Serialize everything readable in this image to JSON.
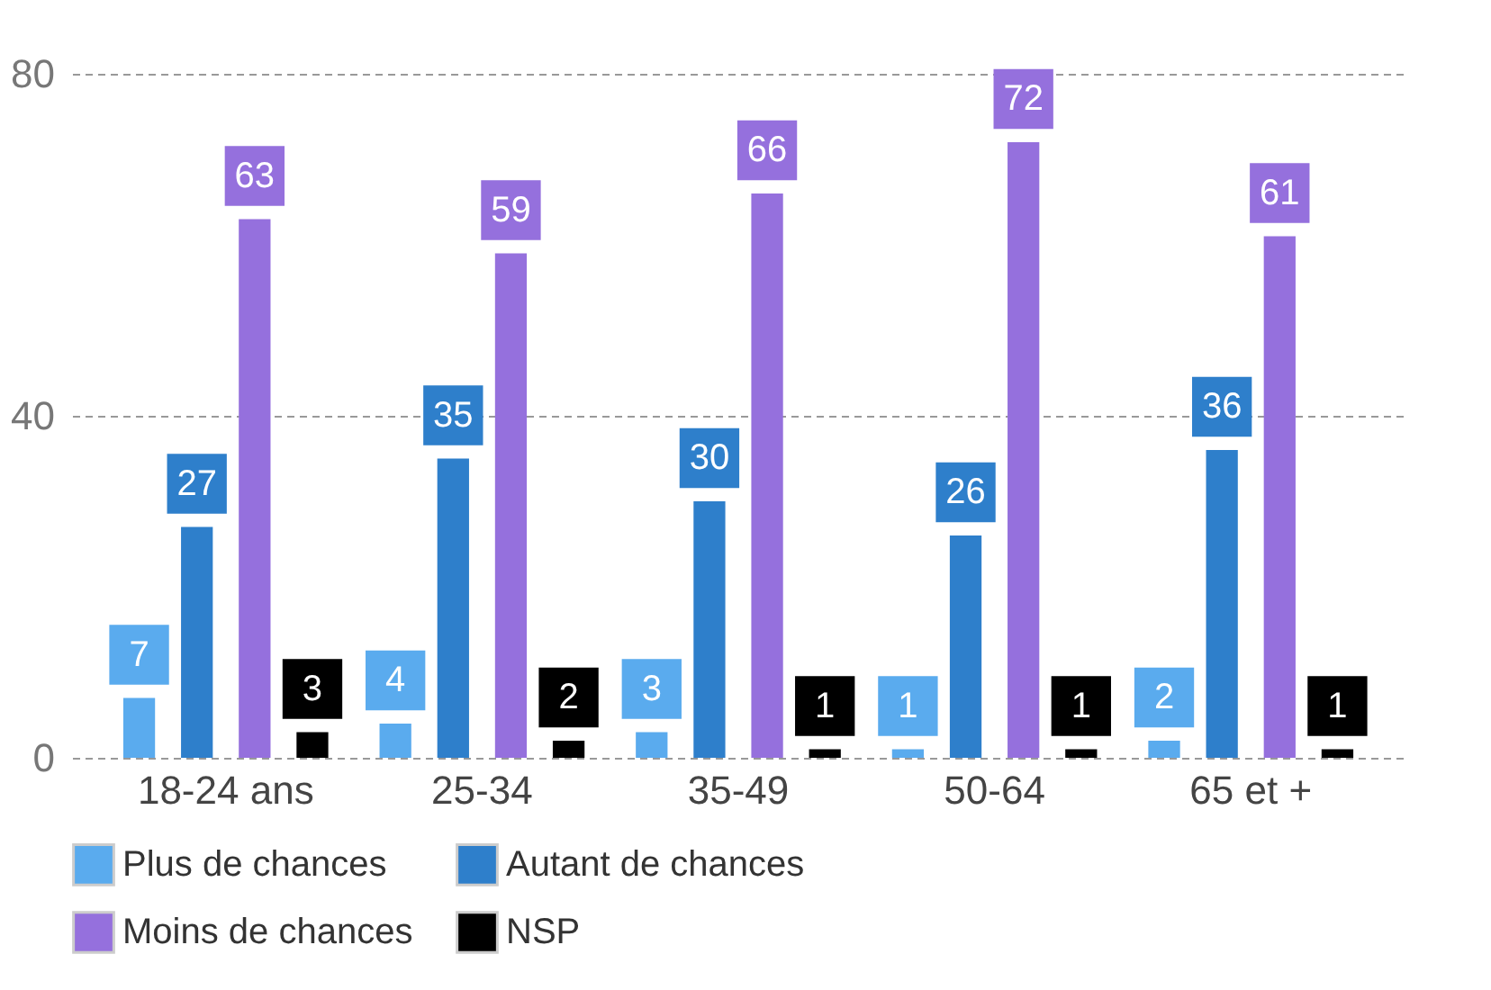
{
  "chart_data": {
    "type": "bar",
    "categories": [
      "18-24 ans",
      "25-34",
      "35-49",
      "50-64",
      "65 et +"
    ],
    "series": [
      {
        "name": "Plus de chances",
        "color": "#5aabee",
        "values": [
          7,
          4,
          3,
          1,
          2
        ]
      },
      {
        "name": "Autant de chances",
        "color": "#2e7fcb",
        "values": [
          27,
          35,
          30,
          26,
          36
        ]
      },
      {
        "name": "Moins de chances",
        "color": "#9570dd",
        "values": [
          63,
          59,
          66,
          72,
          61
        ]
      },
      {
        "name": "NSP",
        "color": "#000000",
        "values": [
          3,
          2,
          1,
          1,
          1
        ]
      }
    ],
    "ylim": [
      0,
      80
    ],
    "yticks": [
      0,
      40,
      80
    ],
    "grid": "y",
    "legend": "bottom",
    "data_labels": true
  }
}
